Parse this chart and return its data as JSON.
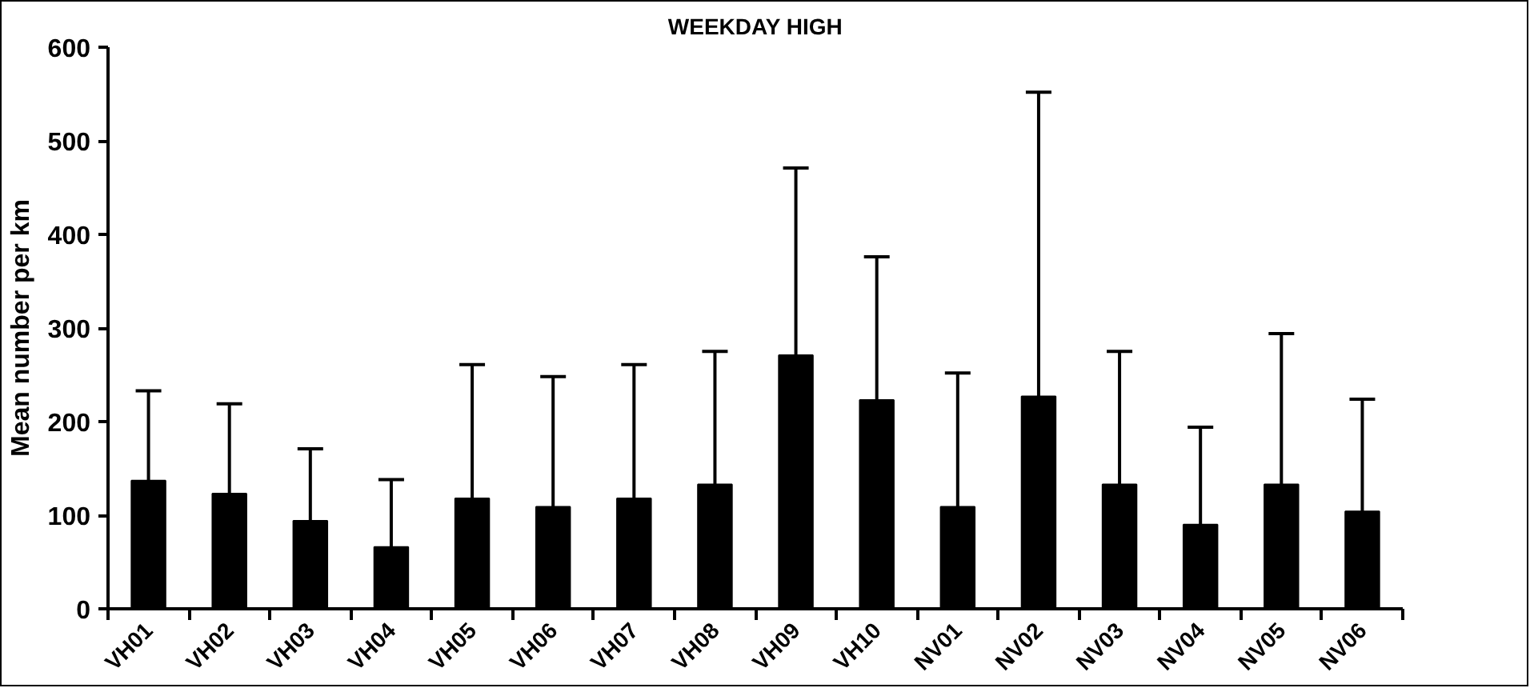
{
  "chart_data": {
    "type": "bar",
    "title": "WEEKDAY HIGH",
    "ylabel": "Mean number per km",
    "categories": [
      "VH01",
      "VH02",
      "VH03",
      "VH04",
      "VH05",
      "VH06",
      "VH07",
      "VH08",
      "VH09",
      "VH10",
      "NV01",
      "NV02",
      "NV03",
      "NV04",
      "NV05",
      "NV06"
    ],
    "values": [
      137,
      123,
      94,
      66,
      118,
      109,
      118,
      133,
      271,
      223,
      109,
      227,
      133,
      90,
      133,
      104
    ],
    "errors": [
      [
        137,
        233
      ],
      [
        123,
        219
      ],
      [
        94,
        171
      ],
      [
        66,
        138
      ],
      [
        118,
        261
      ],
      [
        109,
        248
      ],
      [
        118,
        261
      ],
      [
        133,
        275
      ],
      [
        271,
        471
      ],
      [
        223,
        376
      ],
      [
        109,
        252
      ],
      [
        227,
        552
      ],
      [
        133,
        275
      ],
      [
        90,
        194
      ],
      [
        133,
        294
      ],
      [
        104,
        224
      ]
    ],
    "color": "#000000",
    "ylim": [
      0,
      600
    ],
    "yticks": [
      0,
      100,
      200,
      300,
      400,
      500,
      600
    ],
    "grid": false
  }
}
